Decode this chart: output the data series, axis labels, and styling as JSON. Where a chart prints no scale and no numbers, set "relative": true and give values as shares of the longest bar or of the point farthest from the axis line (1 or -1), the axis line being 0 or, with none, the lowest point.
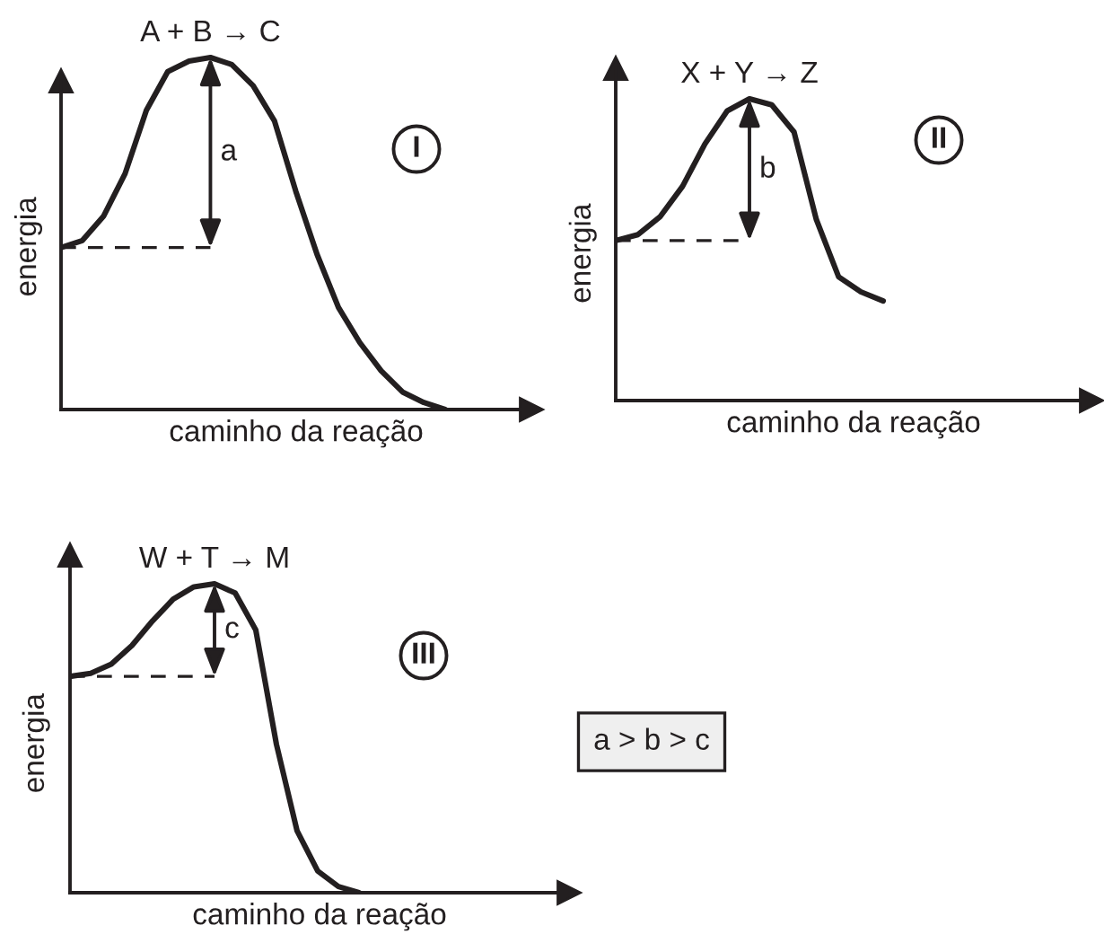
{
  "chart_data": [
    {
      "type": "line",
      "title": "A + B → C",
      "xlabel": "caminho da reação",
      "ylabel": "energia",
      "relative": true,
      "categories": [
        null,
        null,
        null,
        null,
        null,
        null,
        null,
        null,
        null,
        null,
        null,
        null,
        null,
        null,
        null,
        null,
        null,
        null,
        null
      ],
      "series": [
        {
          "color": "#231f20",
          "values": [
            0.46,
            0.48,
            0.55,
            0.67,
            0.85,
            0.96,
            0.99,
            1.0,
            0.98,
            0.92,
            0.82,
            0.62,
            0.44,
            0.29,
            0.19,
            0.11,
            0.05,
            0.02,
            0
          ]
        }
      ],
      "ref_lines": [
        {
          "axis": "y",
          "value": 0.46,
          "line_style": "dashed"
        }
      ],
      "annotations": [
        "a",
        "I"
      ]
    },
    {
      "type": "line",
      "title": "X + Y → Z",
      "xlabel": "caminho da reação",
      "ylabel": "energia",
      "relative": true,
      "categories": [
        null,
        null,
        null,
        null,
        null,
        null,
        null,
        null,
        null,
        null,
        null,
        null,
        null
      ],
      "series": [
        {
          "color": "#231f20",
          "values": [
            0.53,
            0.55,
            0.61,
            0.71,
            0.85,
            0.96,
            1.0,
            0.98,
            0.89,
            0.6,
            0.41,
            0.36,
            0.33
          ]
        }
      ],
      "ref_lines": [
        {
          "axis": "y",
          "value": 0.53,
          "line_style": "dashed"
        }
      ],
      "annotations": [
        "b",
        "II"
      ]
    },
    {
      "type": "line",
      "title": "W + T → M",
      "xlabel": "caminho da reação",
      "ylabel": "energia",
      "relative": true,
      "categories": [
        null,
        null,
        null,
        null,
        null,
        null,
        null,
        null,
        null,
        null,
        null,
        null,
        null,
        null,
        null
      ],
      "series": [
        {
          "color": "#231f20",
          "values": [
            0.7,
            0.71,
            0.74,
            0.8,
            0.88,
            0.95,
            0.99,
            1.0,
            0.97,
            0.85,
            0.48,
            0.2,
            0.07,
            0.02,
            0
          ]
        }
      ],
      "ref_lines": [
        {
          "axis": "y",
          "value": 0.7,
          "line_style": "dashed"
        }
      ],
      "annotations": [
        "c",
        "III",
        "a > b > c"
      ]
    }
  ]
}
